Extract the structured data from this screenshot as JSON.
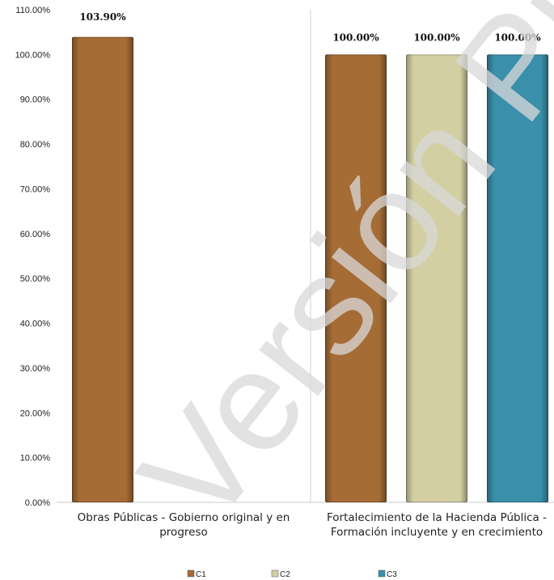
{
  "watermark": "Versión Pública",
  "chart_data": {
    "type": "bar",
    "title": "",
    "xlabel": "",
    "ylabel": "",
    "ylim": [
      0,
      110
    ],
    "yticks": [
      "0.00%",
      "10.00%",
      "20.00%",
      "30.00%",
      "40.00%",
      "50.00%",
      "60.00%",
      "70.00%",
      "80.00%",
      "90.00%",
      "100.00%",
      "110.00%"
    ],
    "categories": [
      [
        "Obras Públicas - Gobierno original y en",
        "progreso"
      ],
      [
        "Fortalecimiento de la Hacienda Pública -",
        "Formación incluyente y en crecimiento"
      ]
    ],
    "series": [
      {
        "name": "C1",
        "color": "#A56C35",
        "values": [
          103.9,
          100.0
        ],
        "labels": [
          "103.90%",
          "100.00%"
        ]
      },
      {
        "name": "C2",
        "color": "#D3CFA3",
        "values": [
          null,
          100.0
        ],
        "labels": [
          "",
          "100.00%"
        ]
      },
      {
        "name": "C3",
        "color": "#3A8FAA",
        "values": [
          null,
          100.0
        ],
        "labels": [
          "",
          "100.00%"
        ]
      }
    ],
    "grid": false,
    "legend_position": "bottom"
  }
}
